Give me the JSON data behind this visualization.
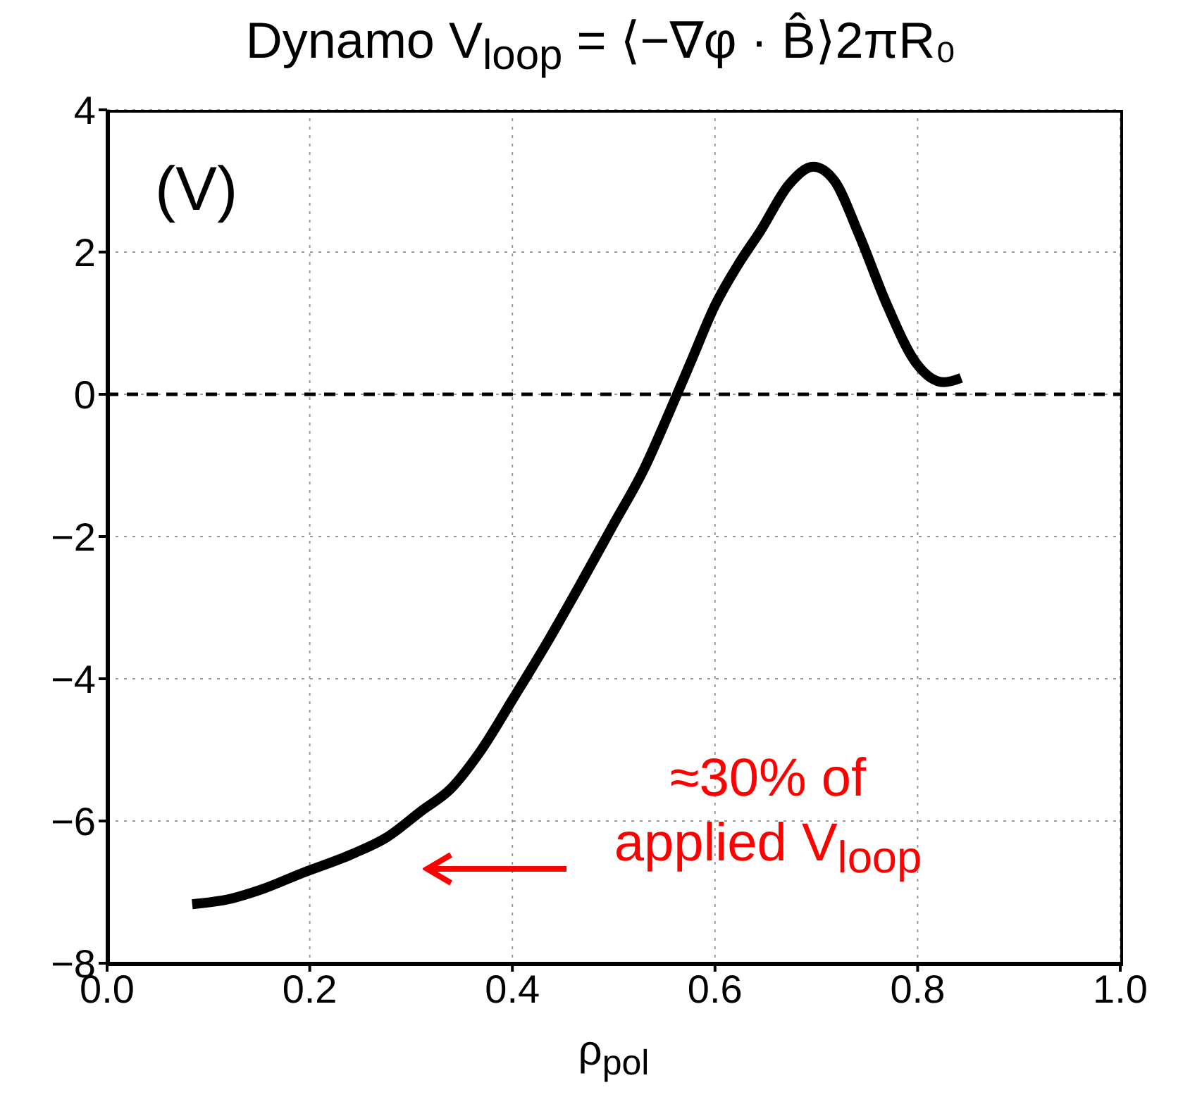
{
  "chart_data": {
    "type": "line",
    "title": "Dynamo V$_{loop}$ = ⟨−∇φ · B̂⟩2πR₀",
    "xlabel": "ρ$_{pol}$",
    "ylabel": "(V)",
    "x": [
      0.084,
      0.123,
      0.151,
      0.193,
      0.241,
      0.276,
      0.311,
      0.339,
      0.367,
      0.402,
      0.436,
      0.464,
      0.499,
      0.53,
      0.555,
      0.576,
      0.6,
      0.624,
      0.645,
      0.673,
      0.697,
      0.718,
      0.742,
      0.77,
      0.798,
      0.826,
      0.843
    ],
    "series": [
      {
        "color": "#000000",
        "values": [
          -7.17,
          -7.09,
          -6.97,
          -6.73,
          -6.47,
          -6.23,
          -5.85,
          -5.55,
          -5.05,
          -4.25,
          -3.45,
          -2.75,
          -1.85,
          -1.05,
          -0.25,
          0.45,
          1.25,
          1.85,
          2.3,
          2.95,
          3.2,
          3.0,
          2.25,
          1.25,
          0.45,
          0.17,
          0.23
        ]
      }
    ],
    "xlim": [
      0,
      1
    ],
    "xticks": [
      {
        "value": 0,
        "label": "0.0"
      },
      {
        "value": 0.2,
        "label": "0.2"
      },
      {
        "value": 0.4,
        "label": "0.4"
      },
      {
        "value": 0.6,
        "label": "0.6"
      },
      {
        "value": 0.8,
        "label": "0.8"
      },
      {
        "value": 1,
        "label": "1.0"
      }
    ],
    "ylim": [
      -8,
      4
    ],
    "yticks": [
      {
        "value": -8,
        "label": "−8"
      },
      {
        "value": -6,
        "label": "−6"
      },
      {
        "value": -4,
        "label": "−4"
      },
      {
        "value": -2,
        "label": "−2"
      },
      0,
      2,
      4
    ],
    "ref_lines": [
      {
        "axis": "y",
        "value": 0,
        "color": "#000000",
        "line_style": "dashed"
      }
    ],
    "annotations": [
      "≈30% of\napplied V$_{loop}$"
    ],
    "grid": true,
    "marker": "none",
    "line_style": "solid"
  }
}
